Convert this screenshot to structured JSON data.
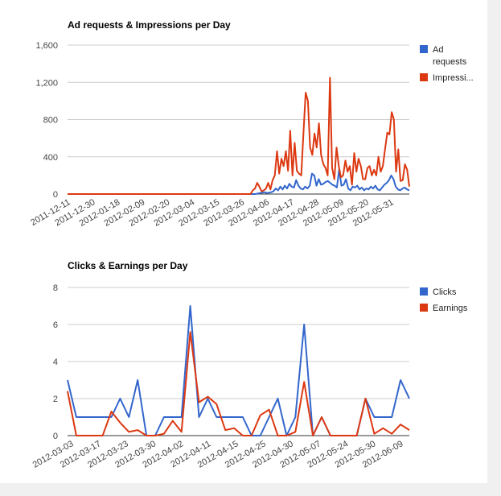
{
  "chart_data": [
    {
      "type": "line",
      "title": "Ad requests & Impressions per Day",
      "ylim": [
        0,
        1600
      ],
      "yticks": [
        0,
        400,
        800,
        1200,
        1600
      ],
      "ytick_labels": [
        "0",
        "400",
        "800",
        "1,200",
        "1,600"
      ],
      "xtick_labels": [
        "2011-12-11",
        "2011-12-30",
        "2012-01-18",
        "2012-02-09",
        "2012-02-20",
        "2012-03-04",
        "2012-03-15",
        "2012-03-26",
        "2012-04-06",
        "2012-04-17",
        "2012-04-28",
        "2012-05-09",
        "2012-05-20",
        "2012-05-31"
      ],
      "grid": true,
      "legend": "right",
      "legend_lines": [
        [
          "Ad",
          "requests"
        ],
        [
          "Impressi..."
        ]
      ],
      "series": [
        {
          "name": "Ad requests",
          "color": "#3366cc",
          "values": [
            0,
            0,
            0,
            0,
            0,
            0,
            0,
            0,
            0,
            0,
            0,
            0,
            0,
            0,
            0,
            0,
            0,
            0,
            0,
            0,
            0,
            0,
            0,
            0,
            0,
            0,
            0,
            0,
            0,
            0,
            0,
            0,
            0,
            0,
            0,
            0,
            0,
            0,
            0,
            0,
            0,
            0,
            0,
            0,
            0,
            0,
            0,
            0,
            0,
            0,
            0,
            0,
            0,
            0,
            0,
            0,
            0,
            0,
            0,
            0,
            0,
            0,
            0,
            0,
            0,
            0,
            0,
            0,
            0,
            0,
            0,
            0,
            0,
            0,
            0,
            0,
            0,
            0,
            0,
            0,
            0,
            0,
            0,
            0,
            5,
            10,
            15,
            20,
            10,
            15,
            20,
            30,
            60,
            40,
            80,
            50,
            90,
            60,
            110,
            80,
            70,
            150,
            90,
            60,
            50,
            80,
            60,
            90,
            220,
            200,
            90,
            160,
            100,
            110,
            130,
            140,
            120,
            100,
            90,
            70,
            260,
            90,
            100,
            160,
            60,
            40,
            80,
            70,
            90,
            50,
            70,
            40,
            60,
            50,
            80,
            60,
            90,
            50,
            40,
            70,
            100,
            120,
            150,
            200,
            160,
            80,
            50,
            40,
            60,
            70,
            50,
            40
          ]
        },
        {
          "name": "Impressions",
          "color": "#dc3912",
          "values": [
            0,
            0,
            0,
            0,
            0,
            0,
            0,
            0,
            0,
            0,
            0,
            0,
            0,
            0,
            0,
            0,
            0,
            0,
            0,
            0,
            0,
            0,
            0,
            0,
            0,
            0,
            0,
            0,
            0,
            0,
            0,
            0,
            0,
            0,
            0,
            0,
            0,
            0,
            0,
            0,
            0,
            0,
            0,
            0,
            0,
            0,
            0,
            0,
            0,
            0,
            0,
            0,
            0,
            0,
            0,
            0,
            0,
            0,
            0,
            0,
            0,
            0,
            0,
            0,
            0,
            0,
            0,
            0,
            0,
            0,
            0,
            0,
            0,
            0,
            0,
            0,
            0,
            0,
            0,
            0,
            0,
            0,
            0,
            0,
            40,
            60,
            120,
            80,
            30,
            40,
            60,
            120,
            50,
            150,
            200,
            460,
            220,
            380,
            300,
            460,
            250,
            680,
            200,
            550,
            250,
            220,
            200,
            660,
            1090,
            1000,
            500,
            420,
            650,
            500,
            760,
            420,
            320,
            280,
            200,
            1250,
            280,
            160,
            500,
            300,
            180,
            200,
            360,
            240,
            300,
            100,
            440,
            240,
            380,
            300,
            160,
            160,
            280,
            300,
            200,
            260,
            200,
            400,
            240,
            300,
            480,
            660,
            640,
            880,
            800,
            240,
            480,
            140,
            150,
            320,
            260,
            80
          ]
        }
      ]
    },
    {
      "type": "line",
      "title": "Clicks & Earnings per Day",
      "ylim": [
        0,
        8
      ],
      "yticks": [
        0,
        2,
        4,
        6,
        8
      ],
      "ytick_labels": [
        "0",
        "2",
        "4",
        "6",
        "8"
      ],
      "xtick_labels": [
        "2012-03-03",
        "2012-03-17",
        "2012-03-23",
        "2012-03-30",
        "2012-04-02",
        "2012-04-11",
        "2012-04-15",
        "2012-04-25",
        "2012-04-30",
        "2012-05-07",
        "2012-05-24",
        "2012-05-30",
        "2012-06-09"
      ],
      "grid": true,
      "legend": "right",
      "legend_lines": [
        [
          "Clicks"
        ],
        [
          "Earnings"
        ]
      ],
      "series": [
        {
          "name": "Clicks",
          "color": "#3366cc",
          "values": [
            3,
            1,
            1,
            1,
            1,
            1,
            2,
            1,
            3,
            0,
            0,
            1,
            1,
            1,
            7,
            1,
            2,
            1,
            1,
            1,
            1,
            0,
            0,
            1,
            2,
            0,
            1,
            6,
            0,
            1,
            0,
            0,
            0,
            0,
            2,
            1,
            1,
            1,
            3,
            2
          ]
        },
        {
          "name": "Earnings",
          "color": "#dc3912",
          "values": [
            2.4,
            0,
            0,
            0,
            0,
            1.3,
            0.7,
            0.2,
            0.3,
            0,
            0,
            0.1,
            0.8,
            0.2,
            5.6,
            1.8,
            2.1,
            1.7,
            0.3,
            0.4,
            0,
            0,
            1.1,
            1.4,
            0,
            0,
            0.2,
            2.9,
            0,
            1,
            0,
            0,
            0,
            0,
            2,
            0.1,
            0.4,
            0.1,
            0.6,
            0.3
          ]
        }
      ]
    }
  ]
}
